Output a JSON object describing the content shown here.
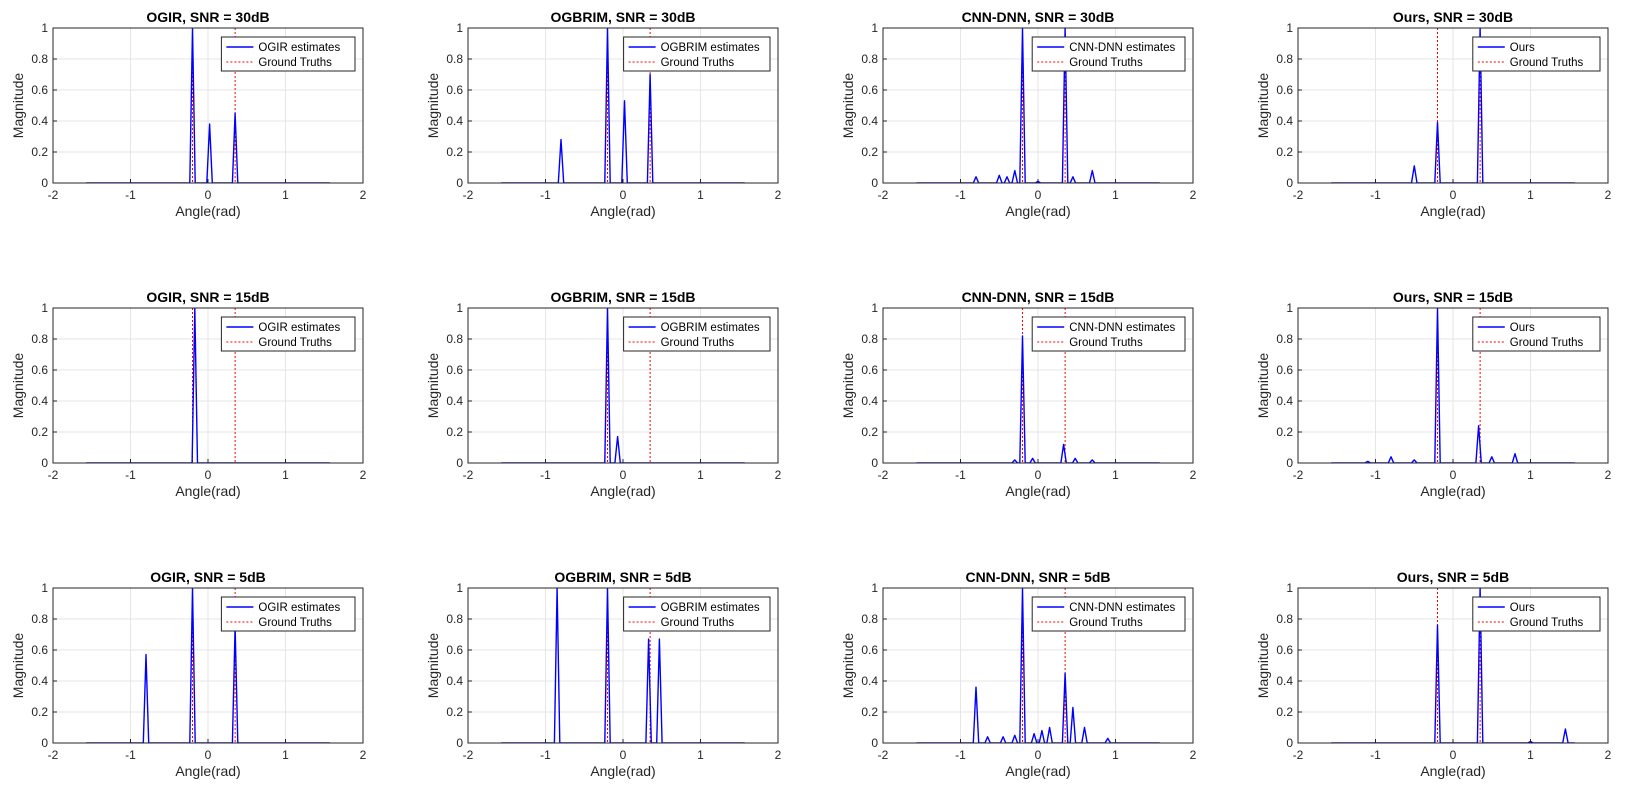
{
  "chart_data": [
    {
      "type": "line",
      "title": "OGIR, SNR = 30dB",
      "xlabel": "Angle(rad)",
      "ylabel": "Magnitude",
      "xlim": [
        -2,
        2
      ],
      "ylim": [
        0,
        1
      ],
      "xticks": [
        "-2",
        "-1",
        "0",
        "1",
        "2"
      ],
      "yticks": [
        "0",
        "0.2",
        "0.4",
        "0.6",
        "0.8",
        "1"
      ],
      "grid": true,
      "legend_position": "top-right",
      "series": [
        {
          "name": "OGIR estimates",
          "style": "solid",
          "color": "#0000ff",
          "peaks": [
            {
              "x": -0.2,
              "y": 1.0
            },
            {
              "x": 0.02,
              "y": 0.38
            },
            {
              "x": 0.35,
              "y": 0.45
            }
          ]
        },
        {
          "name": "Ground Truths",
          "style": "dotted",
          "color": "#ff0000",
          "lines": [
            -0.2,
            0.35
          ]
        }
      ]
    },
    {
      "type": "line",
      "title": "OGBRIM, SNR = 30dB",
      "xlabel": "Angle(rad)",
      "ylabel": "Magnitude",
      "xlim": [
        -2,
        2
      ],
      "ylim": [
        0,
        1
      ],
      "xticks": [
        "-2",
        "-1",
        "0",
        "1",
        "2"
      ],
      "yticks": [
        "0",
        "0.2",
        "0.4",
        "0.6",
        "0.8",
        "1"
      ],
      "grid": true,
      "legend_position": "top-right",
      "series": [
        {
          "name": "OGBRIM estimates",
          "style": "solid",
          "color": "#0000ff",
          "peaks": [
            {
              "x": -0.8,
              "y": 0.28
            },
            {
              "x": -0.2,
              "y": 1.0
            },
            {
              "x": 0.02,
              "y": 0.53
            },
            {
              "x": 0.35,
              "y": 0.7
            }
          ]
        },
        {
          "name": "Ground Truths",
          "style": "dotted",
          "color": "#ff0000",
          "lines": [
            -0.2,
            0.35
          ]
        }
      ]
    },
    {
      "type": "line",
      "title": "CNN-DNN, SNR = 30dB",
      "xlabel": "Angle(rad)",
      "ylabel": "Magnitude",
      "xlim": [
        -2,
        2
      ],
      "ylim": [
        0,
        1
      ],
      "xticks": [
        "-2",
        "-1",
        "0",
        "1",
        "2"
      ],
      "yticks": [
        "0",
        "0.2",
        "0.4",
        "0.6",
        "0.8",
        "1"
      ],
      "grid": true,
      "legend_position": "top-right",
      "series": [
        {
          "name": "CNN-DNN estimates",
          "style": "solid",
          "color": "#0000ff",
          "peaks": [
            {
              "x": -0.8,
              "y": 0.04
            },
            {
              "x": -0.5,
              "y": 0.05
            },
            {
              "x": -0.4,
              "y": 0.04
            },
            {
              "x": -0.3,
              "y": 0.08
            },
            {
              "x": -0.2,
              "y": 1.0
            },
            {
              "x": 0.0,
              "y": 0.01
            },
            {
              "x": 0.35,
              "y": 1.0
            },
            {
              "x": 0.45,
              "y": 0.04
            },
            {
              "x": 0.7,
              "y": 0.08
            }
          ]
        },
        {
          "name": "Ground Truths",
          "style": "dotted",
          "color": "#ff0000",
          "lines": [
            -0.2,
            0.35
          ]
        }
      ]
    },
    {
      "type": "line",
      "title": "Ours, SNR = 30dB",
      "xlabel": "Angle(rad)",
      "ylabel": "Magnitude",
      "xlim": [
        -2,
        2
      ],
      "ylim": [
        0,
        1
      ],
      "xticks": [
        "-2",
        "-1",
        "0",
        "1",
        "2"
      ],
      "yticks": [
        "0",
        "0.2",
        "0.4",
        "0.6",
        "0.8",
        "1"
      ],
      "grid": true,
      "legend_position": "top-right",
      "series": [
        {
          "name": "Ours",
          "style": "solid",
          "color": "#0000ff",
          "peaks": [
            {
              "x": -0.5,
              "y": 0.11
            },
            {
              "x": -0.2,
              "y": 0.39
            },
            {
              "x": 0.35,
              "y": 1.0
            }
          ]
        },
        {
          "name": "Ground Truths",
          "style": "dotted",
          "color": "#ff0000",
          "lines": [
            -0.2,
            0.35
          ]
        }
      ]
    },
    {
      "type": "line",
      "title": "OGIR, SNR = 15dB",
      "xlabel": "Angle(rad)",
      "ylabel": "Magnitude",
      "xlim": [
        -2,
        2
      ],
      "ylim": [
        0,
        1
      ],
      "xticks": [
        "-2",
        "-1",
        "0",
        "1",
        "2"
      ],
      "yticks": [
        "0",
        "0.2",
        "0.4",
        "0.6",
        "0.8",
        "1"
      ],
      "grid": true,
      "legend_position": "top-right",
      "series": [
        {
          "name": "OGIR estimates",
          "style": "solid",
          "color": "#0000ff",
          "peaks": [
            {
              "x": -0.17,
              "y": 1.0
            }
          ]
        },
        {
          "name": "Ground Truths",
          "style": "dotted",
          "color": "#ff0000",
          "lines": [
            -0.2,
            0.35
          ]
        }
      ]
    },
    {
      "type": "line",
      "title": "OGBRIM, SNR = 15dB",
      "xlabel": "Angle(rad)",
      "ylabel": "Magnitude",
      "xlim": [
        -2,
        2
      ],
      "ylim": [
        0,
        1
      ],
      "xticks": [
        "-2",
        "-1",
        "0",
        "1",
        "2"
      ],
      "yticks": [
        "0",
        "0.2",
        "0.4",
        "0.6",
        "0.8",
        "1"
      ],
      "grid": true,
      "legend_position": "top-right",
      "series": [
        {
          "name": "OGBRIM estimates",
          "style": "solid",
          "color": "#0000ff",
          "peaks": [
            {
              "x": -0.2,
              "y": 1.0
            },
            {
              "x": -0.07,
              "y": 0.17
            }
          ]
        },
        {
          "name": "Ground Truths",
          "style": "dotted",
          "color": "#ff0000",
          "lines": [
            -0.2,
            0.35
          ]
        }
      ]
    },
    {
      "type": "line",
      "title": "CNN-DNN, SNR = 15dB",
      "xlabel": "Angle(rad)",
      "ylabel": "Magnitude",
      "xlim": [
        -2,
        2
      ],
      "ylim": [
        0,
        1
      ],
      "xticks": [
        "-2",
        "-1",
        "0",
        "1",
        "2"
      ],
      "yticks": [
        "0",
        "0.2",
        "0.4",
        "0.6",
        "0.8",
        "1"
      ],
      "grid": true,
      "legend_position": "top-right",
      "series": [
        {
          "name": "CNN-DNN estimates",
          "style": "solid",
          "color": "#0000ff",
          "peaks": [
            {
              "x": -0.3,
              "y": 0.02
            },
            {
              "x": -0.2,
              "y": 0.82
            },
            {
              "x": -0.07,
              "y": 0.03
            },
            {
              "x": 0.33,
              "y": 0.12
            },
            {
              "x": 0.48,
              "y": 0.03
            },
            {
              "x": 0.7,
              "y": 0.02
            }
          ]
        },
        {
          "name": "Ground Truths",
          "style": "dotted",
          "color": "#ff0000",
          "lines": [
            -0.2,
            0.35
          ]
        }
      ]
    },
    {
      "type": "line",
      "title": "Ours, SNR = 15dB",
      "xlabel": "Angle(rad)",
      "ylabel": "Magnitude",
      "xlim": [
        -2,
        2
      ],
      "ylim": [
        0,
        1
      ],
      "xticks": [
        "-2",
        "-1",
        "0",
        "1",
        "2"
      ],
      "yticks": [
        "0",
        "0.2",
        "0.4",
        "0.6",
        "0.8",
        "1"
      ],
      "grid": true,
      "legend_position": "top-right",
      "series": [
        {
          "name": "Ours",
          "style": "solid",
          "color": "#0000ff",
          "peaks": [
            {
              "x": -1.1,
              "y": 0.01
            },
            {
              "x": -0.8,
              "y": 0.04
            },
            {
              "x": -0.5,
              "y": 0.02
            },
            {
              "x": -0.2,
              "y": 1.0
            },
            {
              "x": 0.33,
              "y": 0.24
            },
            {
              "x": 0.5,
              "y": 0.04
            },
            {
              "x": 0.8,
              "y": 0.06
            }
          ]
        },
        {
          "name": "Ground Truths",
          "style": "dotted",
          "color": "#ff0000",
          "lines": [
            -0.2,
            0.35
          ]
        }
      ]
    },
    {
      "type": "line",
      "title": "OGIR, SNR = 5dB",
      "xlabel": "Angle(rad)",
      "ylabel": "Magnitude",
      "xlim": [
        -2,
        2
      ],
      "ylim": [
        0,
        1
      ],
      "xticks": [
        "-2",
        "-1",
        "0",
        "1",
        "2"
      ],
      "yticks": [
        "0",
        "0.2",
        "0.4",
        "0.6",
        "0.8",
        "1"
      ],
      "grid": true,
      "legend_position": "top-right",
      "series": [
        {
          "name": "OGIR estimates",
          "style": "solid",
          "color": "#0000ff",
          "peaks": [
            {
              "x": -0.8,
              "y": 0.57
            },
            {
              "x": -0.2,
              "y": 1.0
            },
            {
              "x": 0.35,
              "y": 0.75
            }
          ]
        },
        {
          "name": "Ground Truths",
          "style": "dotted",
          "color": "#ff0000",
          "lines": [
            -0.2,
            0.35
          ]
        }
      ]
    },
    {
      "type": "line",
      "title": "OGBRIM, SNR = 5dB",
      "xlabel": "Angle(rad)",
      "ylabel": "Magnitude",
      "xlim": [
        -2,
        2
      ],
      "ylim": [
        0,
        1
      ],
      "xticks": [
        "-2",
        "-1",
        "0",
        "1",
        "2"
      ],
      "yticks": [
        "0",
        "0.2",
        "0.4",
        "0.6",
        "0.8",
        "1"
      ],
      "grid": true,
      "legend_position": "top-right",
      "series": [
        {
          "name": "OGBRIM estimates",
          "style": "solid",
          "color": "#0000ff",
          "peaks": [
            {
              "x": -0.85,
              "y": 1.0
            },
            {
              "x": -0.2,
              "y": 1.0
            },
            {
              "x": 0.33,
              "y": 0.67
            },
            {
              "x": 0.47,
              "y": 0.67
            }
          ]
        },
        {
          "name": "Ground Truths",
          "style": "dotted",
          "color": "#ff0000",
          "lines": [
            -0.2,
            0.35
          ]
        }
      ]
    },
    {
      "type": "line",
      "title": "CNN-DNN, SNR = 5dB",
      "xlabel": "Angle(rad)",
      "ylabel": "Magnitude",
      "xlim": [
        -2,
        2
      ],
      "ylim": [
        0,
        1
      ],
      "xticks": [
        "-2",
        "-1",
        "0",
        "1",
        "2"
      ],
      "yticks": [
        "0",
        "0.2",
        "0.4",
        "0.6",
        "0.8",
        "1"
      ],
      "grid": true,
      "legend_position": "top-right",
      "series": [
        {
          "name": "CNN-DNN estimates",
          "style": "solid",
          "color": "#0000ff",
          "peaks": [
            {
              "x": -0.8,
              "y": 0.36
            },
            {
              "x": -0.65,
              "y": 0.04
            },
            {
              "x": -0.45,
              "y": 0.04
            },
            {
              "x": -0.3,
              "y": 0.05
            },
            {
              "x": -0.2,
              "y": 1.0
            },
            {
              "x": -0.05,
              "y": 0.06
            },
            {
              "x": 0.05,
              "y": 0.08
            },
            {
              "x": 0.15,
              "y": 0.1
            },
            {
              "x": 0.35,
              "y": 0.45
            },
            {
              "x": 0.45,
              "y": 0.23
            },
            {
              "x": 0.6,
              "y": 0.1
            },
            {
              "x": 0.9,
              "y": 0.03
            }
          ]
        },
        {
          "name": "Ground Truths",
          "style": "dotted",
          "color": "#ff0000",
          "lines": [
            -0.2,
            0.35
          ]
        }
      ]
    },
    {
      "type": "line",
      "title": "Ours, SNR = 5dB",
      "xlabel": "Angle(rad)",
      "ylabel": "Magnitude",
      "xlim": [
        -2,
        2
      ],
      "ylim": [
        0,
        1
      ],
      "xticks": [
        "-2",
        "-1",
        "0",
        "1",
        "2"
      ],
      "yticks": [
        "0",
        "0.2",
        "0.4",
        "0.6",
        "0.8",
        "1"
      ],
      "grid": true,
      "legend_position": "top-right",
      "series": [
        {
          "name": "Ours",
          "style": "solid",
          "color": "#0000ff",
          "peaks": [
            {
              "x": -0.2,
              "y": 0.76
            },
            {
              "x": 0.35,
              "y": 1.0
            },
            {
              "x": 1.0,
              "y": 0.01
            },
            {
              "x": 1.45,
              "y": 0.09
            }
          ]
        },
        {
          "name": "Ground Truths",
          "style": "dotted",
          "color": "#ff0000",
          "lines": [
            -0.2,
            0.35
          ]
        }
      ]
    }
  ]
}
